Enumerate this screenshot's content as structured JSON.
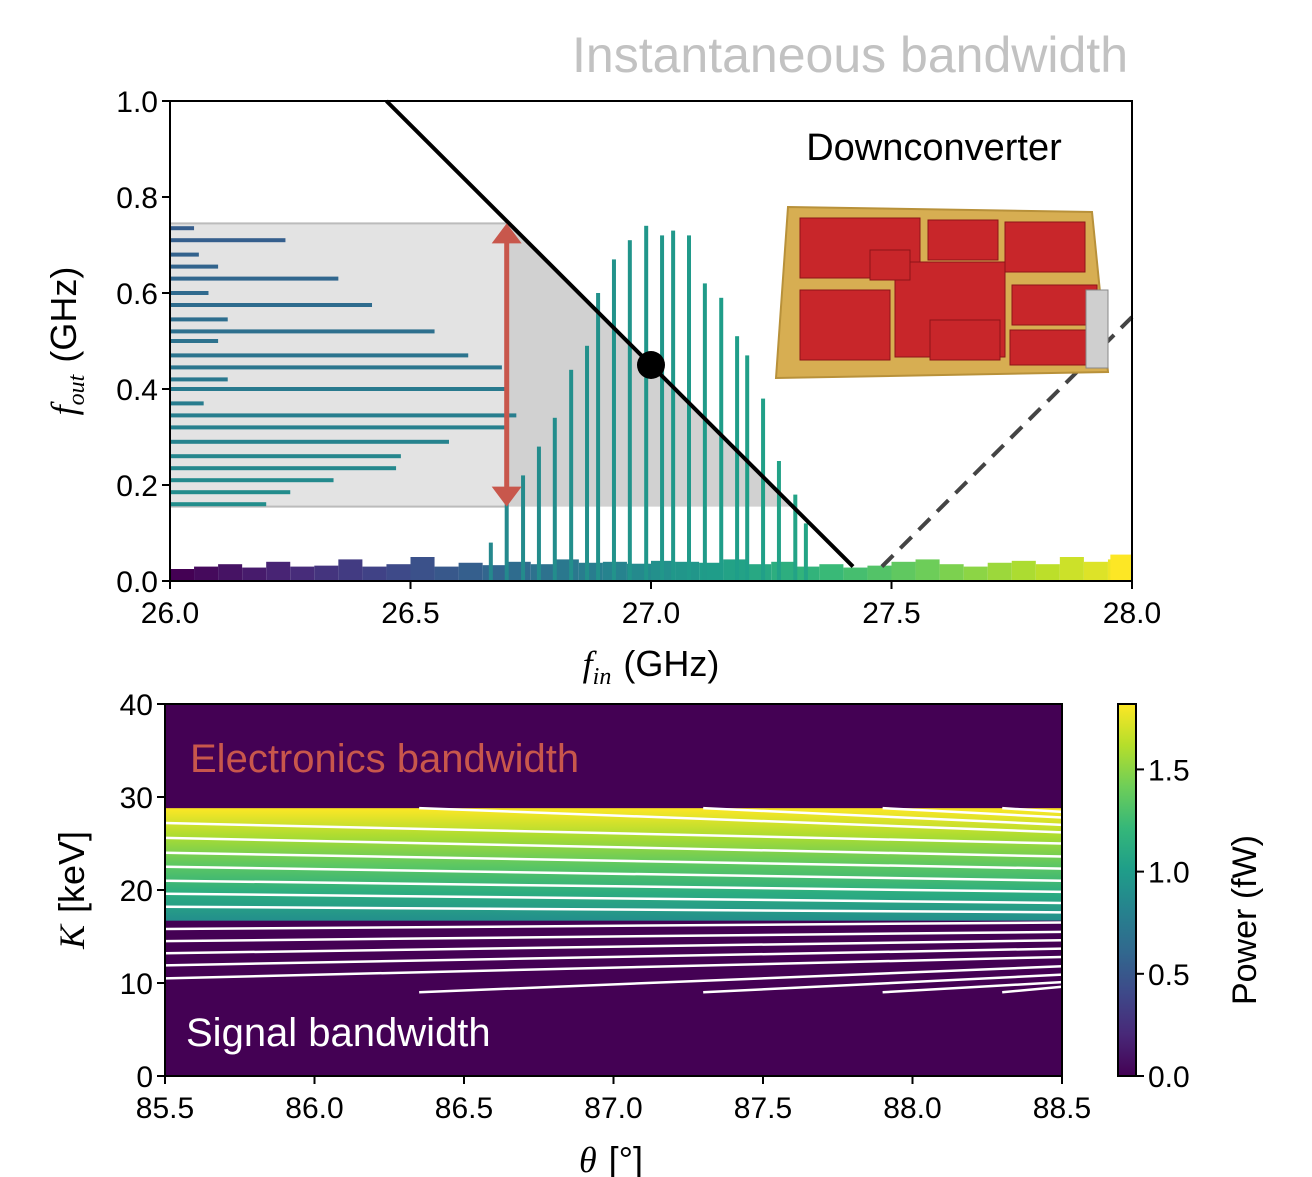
{
  "chart_data": [
    {
      "type": "spectrum",
      "title": "Instantaneous bandwidth",
      "annotation": "Downconverter",
      "xlabel": {
        "symbol": "f",
        "subscript": "in",
        "unit": "(GHz)"
      },
      "ylabel": {
        "symbol": "f",
        "subscript": "out",
        "unit": "(GHz)"
      },
      "xlim": [
        26,
        28
      ],
      "ylim": [
        0,
        1
      ],
      "xticks": [
        {
          "value": 26,
          "label": "26.0"
        },
        {
          "value": 26.5,
          "label": "26.5"
        },
        {
          "value": 27,
          "label": "27.0"
        },
        {
          "value": 27.5,
          "label": "27.5"
        },
        {
          "value": 28,
          "label": "28.0"
        }
      ],
      "yticks": [
        {
          "value": 0,
          "label": "0.0"
        },
        {
          "value": 0.2,
          "label": "0.2"
        },
        {
          "value": 0.4,
          "label": "0.4"
        },
        {
          "value": 0.6,
          "label": "0.6"
        },
        {
          "value": 0.8,
          "label": "0.8"
        },
        {
          "value": 1,
          "label": "1.0"
        }
      ],
      "colormap": "viridis",
      "mixing_line": {
        "x": [
          26.45,
          27.42
        ],
        "y": [
          1.0,
          0.03
        ],
        "color": "#000000"
      },
      "image_line": {
        "x": [
          27.48,
          28.0
        ],
        "y": [
          0.03,
          0.55
        ],
        "color": "#444444"
      },
      "lo_point": {
        "x": 27.0,
        "y": 0.45,
        "color": "#000000"
      },
      "bandwidth_band": {
        "x": [
          26,
          26.7
        ],
        "y": [
          0.155,
          0.745
        ],
        "color": "#d9d9d9"
      },
      "arrow": {
        "x": 26.7,
        "y": [
          0.155,
          0.745
        ],
        "color": "#c8574c"
      },
      "input_spectrum": {
        "x": [
          26.667,
          26.7,
          26.734,
          26.767,
          26.8,
          26.834,
          26.867,
          26.89,
          26.923,
          26.956,
          26.99,
          27.023,
          27.046,
          27.079,
          27.112,
          27.146,
          27.179,
          27.2,
          27.233,
          27.266,
          27.3,
          27.322
        ],
        "values": [
          0.08,
          0.17,
          0.22,
          0.28,
          0.34,
          0.44,
          0.49,
          0.6,
          0.67,
          0.71,
          0.74,
          0.72,
          0.73,
          0.72,
          0.62,
          0.59,
          0.51,
          0.47,
          0.38,
          0.25,
          0.18,
          0.12
        ]
      },
      "output_spectrum": {
        "y": [
          0.735,
          0.71,
          0.68,
          0.655,
          0.63,
          0.6,
          0.575,
          0.545,
          0.52,
          0.5,
          0.47,
          0.445,
          0.42,
          0.4,
          0.37,
          0.345,
          0.32,
          0.29,
          0.26,
          0.235,
          0.21,
          0.185,
          0.16
        ],
        "values": [
          26.05,
          26.24,
          26.06,
          26.1,
          26.35,
          26.08,
          26.42,
          26.12,
          26.55,
          26.1,
          26.62,
          26.69,
          26.12,
          26.7,
          26.07,
          26.72,
          26.7,
          26.58,
          26.48,
          26.47,
          26.34,
          26.25,
          26.2
        ]
      },
      "noise_floor": {
        "x": [
          26.0,
          26.05,
          26.1,
          26.15,
          26.2,
          26.25,
          26.3,
          26.35,
          26.4,
          26.45,
          26.5,
          26.55,
          26.6,
          26.65,
          26.7,
          26.75,
          26.8,
          26.85,
          26.9,
          26.95,
          27.0,
          27.05,
          27.1,
          27.15,
          27.2,
          27.25,
          27.3,
          27.35,
          27.4,
          27.45,
          27.5,
          27.55,
          27.6,
          27.65,
          27.7,
          27.75,
          27.8,
          27.85,
          27.9,
          27.95,
          28.0
        ],
        "values": [
          0.025,
          0.03,
          0.035,
          0.028,
          0.04,
          0.03,
          0.032,
          0.045,
          0.03,
          0.035,
          0.05,
          0.03,
          0.038,
          0.033,
          0.04,
          0.035,
          0.045,
          0.038,
          0.04,
          0.036,
          0.042,
          0.04,
          0.038,
          0.045,
          0.035,
          0.04,
          0.03,
          0.035,
          0.028,
          0.032,
          0.04,
          0.045,
          0.035,
          0.03,
          0.038,
          0.042,
          0.035,
          0.05,
          0.04,
          0.045,
          0.055
        ]
      }
    },
    {
      "type": "heatmap",
      "xlabel": {
        "symbol": "θ",
        "unit": "[°]"
      },
      "ylabel": {
        "symbol": "K",
        "unit": "[keV]"
      },
      "xlim": [
        85.5,
        88.5
      ],
      "ylim": [
        0,
        40
      ],
      "xticks": [
        85.5,
        {
          "value": 86,
          "label": "86.0"
        },
        86.5,
        {
          "value": 87,
          "label": "87.0"
        },
        87.5,
        {
          "value": 88,
          "label": "88.0"
        },
        88.5
      ],
      "yticks": [
        0,
        10,
        20,
        30,
        40
      ],
      "annotations": [
        {
          "text": "Electronics bandwidth",
          "color": "#c8574c"
        },
        {
          "text": "Signal bandwidth",
          "color": "#ffffff"
        }
      ],
      "colormap": "viridis",
      "band": {
        "k": [
          16.7,
          28.8
        ],
        "power": [
          0.9,
          1.82
        ]
      },
      "contour_color": "#ffffff",
      "contours": [
        {
          "x": [
            85.5,
            88.5
          ],
          "y": [
            27.2,
            25.0
          ]
        },
        {
          "x": [
            85.5,
            88.5
          ],
          "y": [
            25.6,
            23.6
          ]
        },
        {
          "x": [
            85.5,
            88.5
          ],
          "y": [
            24.0,
            22.3
          ]
        },
        {
          "x": [
            85.5,
            88.5
          ],
          "y": [
            22.5,
            21.0
          ]
        },
        {
          "x": [
            85.5,
            88.5
          ],
          "y": [
            21.0,
            19.8
          ]
        },
        {
          "x": [
            85.5,
            88.5
          ],
          "y": [
            19.6,
            18.6
          ]
        },
        {
          "x": [
            85.5,
            88.5
          ],
          "y": [
            18.2,
            17.6
          ]
        },
        {
          "x": [
            86.35,
            88.5
          ],
          "y": [
            28.8,
            26.2
          ]
        },
        {
          "x": [
            87.3,
            88.5
          ],
          "y": [
            28.8,
            27.0
          ]
        },
        {
          "x": [
            87.9,
            88.5
          ],
          "y": [
            28.8,
            27.8
          ]
        },
        {
          "x": [
            88.3,
            88.5
          ],
          "y": [
            28.8,
            28.4
          ]
        },
        {
          "x": [
            85.5,
            88.5
          ],
          "y": [
            15.8,
            16.5
          ]
        },
        {
          "x": [
            85.5,
            88.5
          ],
          "y": [
            14.5,
            15.5
          ]
        },
        {
          "x": [
            85.5,
            88.5
          ],
          "y": [
            13.2,
            14.6
          ]
        },
        {
          "x": [
            85.5,
            88.5
          ],
          "y": [
            11.9,
            13.7
          ]
        },
        {
          "x": [
            85.5,
            88.5
          ],
          "y": [
            10.5,
            12.8
          ]
        },
        {
          "x": [
            86.35,
            88.5
          ],
          "y": [
            9.0,
            11.8
          ]
        },
        {
          "x": [
            87.3,
            88.5
          ],
          "y": [
            9.0,
            10.9
          ]
        },
        {
          "x": [
            87.9,
            88.5
          ],
          "y": [
            9.0,
            10.1
          ]
        },
        {
          "x": [
            88.3,
            88.5
          ],
          "y": [
            9.0,
            9.6
          ]
        }
      ],
      "colorbar": {
        "label": "Power (fW)",
        "lim": [
          0,
          1.82
        ],
        "ticks": [
          {
            "value": 0,
            "label": "0.0"
          },
          {
            "value": 0.5,
            "label": "0.5"
          },
          {
            "value": 1,
            "label": "1.0"
          },
          {
            "value": 1.5,
            "label": "1.5"
          }
        ]
      }
    }
  ]
}
